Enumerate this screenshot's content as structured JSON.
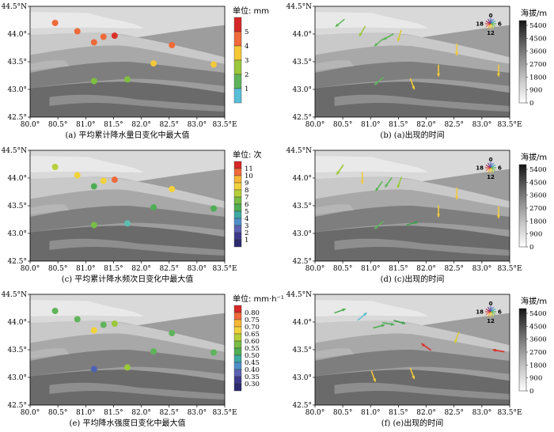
{
  "axes": {
    "x_ticks": [
      "80.0°",
      "80.5°",
      "81.0°",
      "81.5°",
      "82.0°",
      "82.5°",
      "83.0°",
      "83.5°E"
    ],
    "y_ticks": [
      "44.5°N",
      "44.0°",
      "43.5°",
      "43.0°",
      "42.5°"
    ],
    "x_range": [
      80.0,
      83.5
    ],
    "y_range": [
      42.5,
      44.5
    ]
  },
  "compass": {
    "top": "0",
    "right": "6",
    "bottom": "12",
    "left": "18"
  },
  "elevation_colorbar": {
    "title": "海拔/m",
    "ticks": [
      "5400",
      "4500",
      "3600",
      "2700",
      "1800",
      "900",
      "0"
    ]
  },
  "panels": [
    {
      "id": "a",
      "caption": "(a) 平均累计降水量日变化中最大值",
      "unit_label": "单位: mm",
      "colorbar_ticks": [
        "5",
        "4",
        "3",
        "2",
        "1"
      ],
      "colorbar_colors": [
        "#d62728",
        "#f06a3b",
        "#f7c735",
        "#9bc73b",
        "#5fb45b",
        "#58bfd9"
      ],
      "colors": {
        "red": "#d9302a",
        "orange": "#ee6a3a",
        "yellow": "#f2c93a",
        "green": "#7fbf3f"
      },
      "points": [
        {
          "lon": 80.45,
          "lat": 44.2,
          "color": "#ee6a3a"
        },
        {
          "lon": 80.85,
          "lat": 44.05,
          "color": "#ee6a3a"
        },
        {
          "lon": 81.15,
          "lat": 43.85,
          "color": "#ee6a3a"
        },
        {
          "lon": 81.32,
          "lat": 43.95,
          "color": "#ee6a3a"
        },
        {
          "lon": 81.52,
          "lat": 43.97,
          "color": "#d9302a"
        },
        {
          "lon": 82.55,
          "lat": 43.8,
          "color": "#ee6a3a"
        },
        {
          "lon": 82.22,
          "lat": 43.47,
          "color": "#f2c93a"
        },
        {
          "lon": 83.3,
          "lat": 43.45,
          "color": "#f2c93a"
        },
        {
          "lon": 81.15,
          "lat": 43.15,
          "color": "#7fbf3f"
        },
        {
          "lon": 81.75,
          "lat": 43.18,
          "color": "#7fbf3f"
        }
      ]
    },
    {
      "id": "b",
      "caption": "(b) (a)出现的时间",
      "arrows": [
        {
          "lon": 80.45,
          "lat": 44.2,
          "angle": 140,
          "color": "#5fb45b"
        },
        {
          "lon": 80.85,
          "lat": 44.05,
          "angle": 120,
          "color": "#9bc73b"
        },
        {
          "lon": 81.15,
          "lat": 43.85,
          "angle": 140,
          "color": "#5fb45b"
        },
        {
          "lon": 81.32,
          "lat": 43.95,
          "angle": 150,
          "color": "#5fb45b"
        },
        {
          "lon": 81.52,
          "lat": 43.97,
          "angle": 105,
          "color": "#d9c83a"
        },
        {
          "lon": 82.55,
          "lat": 43.72,
          "angle": 90,
          "color": "#f2c93a"
        },
        {
          "lon": 82.22,
          "lat": 43.34,
          "angle": 90,
          "color": "#f2c93a"
        },
        {
          "lon": 83.3,
          "lat": 43.34,
          "angle": 90,
          "color": "#f2c93a"
        },
        {
          "lon": 81.15,
          "lat": 43.15,
          "angle": 140,
          "color": "#5fb45b"
        },
        {
          "lon": 81.75,
          "lat": 43.1,
          "angle": 70,
          "color": "#f2c93a"
        }
      ]
    },
    {
      "id": "c",
      "caption": "(c) 平均累计降水频次日变化中最大值",
      "unit_label": "单位: 次",
      "colorbar_ticks": [
        "11",
        "10",
        "9",
        "8",
        "7",
        "6",
        "5",
        "4",
        "3",
        "2",
        "1"
      ],
      "colorbar_colors": [
        "#d62728",
        "#f06a3b",
        "#f7b735",
        "#f2d23a",
        "#b6cf3a",
        "#78bd45",
        "#4fae55",
        "#3fa9a4",
        "#4e8fc9",
        "#5a62b3",
        "#3d3a8c",
        "#2e2a6e"
      ],
      "points": [
        {
          "lon": 80.45,
          "lat": 44.2,
          "color": "#b8d03a"
        },
        {
          "lon": 80.85,
          "lat": 44.05,
          "color": "#f2d23a"
        },
        {
          "lon": 81.15,
          "lat": 43.85,
          "color": "#4fae55"
        },
        {
          "lon": 81.32,
          "lat": 43.95,
          "color": "#f2d23a"
        },
        {
          "lon": 81.52,
          "lat": 43.97,
          "color": "#ee6a3a"
        },
        {
          "lon": 82.55,
          "lat": 43.8,
          "color": "#f2d23a"
        },
        {
          "lon": 82.22,
          "lat": 43.47,
          "color": "#4fae55"
        },
        {
          "lon": 83.3,
          "lat": 43.45,
          "color": "#4fae55"
        },
        {
          "lon": 81.15,
          "lat": 43.15,
          "color": "#78bd45"
        },
        {
          "lon": 81.75,
          "lat": 43.18,
          "color": "#5dbfae"
        }
      ]
    },
    {
      "id": "d",
      "caption": "(d) (c)出现的时间",
      "arrows": [
        {
          "lon": 80.45,
          "lat": 44.15,
          "angle": 125,
          "color": "#9bc73b"
        },
        {
          "lon": 80.85,
          "lat": 44.0,
          "angle": 90,
          "color": "#f2c93a"
        },
        {
          "lon": 81.15,
          "lat": 43.85,
          "angle": 125,
          "color": "#5fb45b"
        },
        {
          "lon": 81.32,
          "lat": 43.92,
          "angle": 125,
          "color": "#5fb45b"
        },
        {
          "lon": 81.52,
          "lat": 43.92,
          "angle": 110,
          "color": "#9bc73b"
        },
        {
          "lon": 82.55,
          "lat": 43.72,
          "angle": 90,
          "color": "#f2c93a"
        },
        {
          "lon": 82.22,
          "lat": 43.4,
          "angle": 90,
          "color": "#f2c93a"
        },
        {
          "lon": 83.3,
          "lat": 43.38,
          "angle": 90,
          "color": "#f2c93a"
        },
        {
          "lon": 81.15,
          "lat": 43.15,
          "angle": 140,
          "color": "#5fb45b"
        },
        {
          "lon": 81.75,
          "lat": 43.18,
          "angle": -15,
          "color": "#3fa04a"
        }
      ]
    },
    {
      "id": "e",
      "caption": "(e) 平均降水强度日变化中最大值",
      "unit_label": "单位: mm·h⁻¹",
      "colorbar_ticks": [
        "0.80",
        "0.75",
        "0.70",
        "0.65",
        "0.60",
        "0.55",
        "0.50",
        "0.45",
        "0.40",
        "0.35",
        "0.30"
      ],
      "colorbar_colors": [
        "#d62728",
        "#f06a3b",
        "#f7b735",
        "#f2d23a",
        "#b6cf3a",
        "#78bd45",
        "#4fae55",
        "#3fa9a4",
        "#4e8fc9",
        "#5a62b3",
        "#3d3a8c",
        "#2e2a6e"
      ],
      "points": [
        {
          "lon": 80.45,
          "lat": 44.2,
          "color": "#5fb45b"
        },
        {
          "lon": 80.85,
          "lat": 44.05,
          "color": "#5fb45b"
        },
        {
          "lon": 81.15,
          "lat": 43.85,
          "color": "#f2d23a"
        },
        {
          "lon": 81.32,
          "lat": 43.95,
          "color": "#5fb45b"
        },
        {
          "lon": 81.52,
          "lat": 43.97,
          "color": "#9bc73b"
        },
        {
          "lon": 82.55,
          "lat": 43.8,
          "color": "#5fb45b"
        },
        {
          "lon": 82.22,
          "lat": 43.47,
          "color": "#5fb45b"
        },
        {
          "lon": 83.3,
          "lat": 43.45,
          "color": "#5fb45b"
        },
        {
          "lon": 81.15,
          "lat": 43.15,
          "color": "#4e62b3"
        },
        {
          "lon": 81.75,
          "lat": 43.18,
          "color": "#9bc73b"
        }
      ]
    },
    {
      "id": "f",
      "caption": "(f) (e)出现的时间",
      "arrows": [
        {
          "lon": 80.45,
          "lat": 44.2,
          "angle": -20,
          "color": "#4fae55"
        },
        {
          "lon": 80.85,
          "lat": 44.1,
          "angle": -40,
          "color": "#5dbfd0"
        },
        {
          "lon": 81.15,
          "lat": 43.92,
          "angle": -15,
          "color": "#4fae55"
        },
        {
          "lon": 81.32,
          "lat": 43.97,
          "angle": 10,
          "color": "#4fae55"
        },
        {
          "lon": 81.52,
          "lat": 44.0,
          "angle": 15,
          "color": "#3fa04a"
        },
        {
          "lon": 82.55,
          "lat": 43.72,
          "angle": 110,
          "color": "#d9c83a"
        },
        {
          "lon": 82.0,
          "lat": 43.55,
          "angle": -145,
          "color": "#d9302a"
        },
        {
          "lon": 83.3,
          "lat": 43.48,
          "angle": -170,
          "color": "#d9302a"
        },
        {
          "lon": 81.05,
          "lat": 43.02,
          "angle": 70,
          "color": "#f2c93a"
        },
        {
          "lon": 81.75,
          "lat": 43.07,
          "angle": 70,
          "color": "#f2c93a"
        }
      ]
    }
  ]
}
